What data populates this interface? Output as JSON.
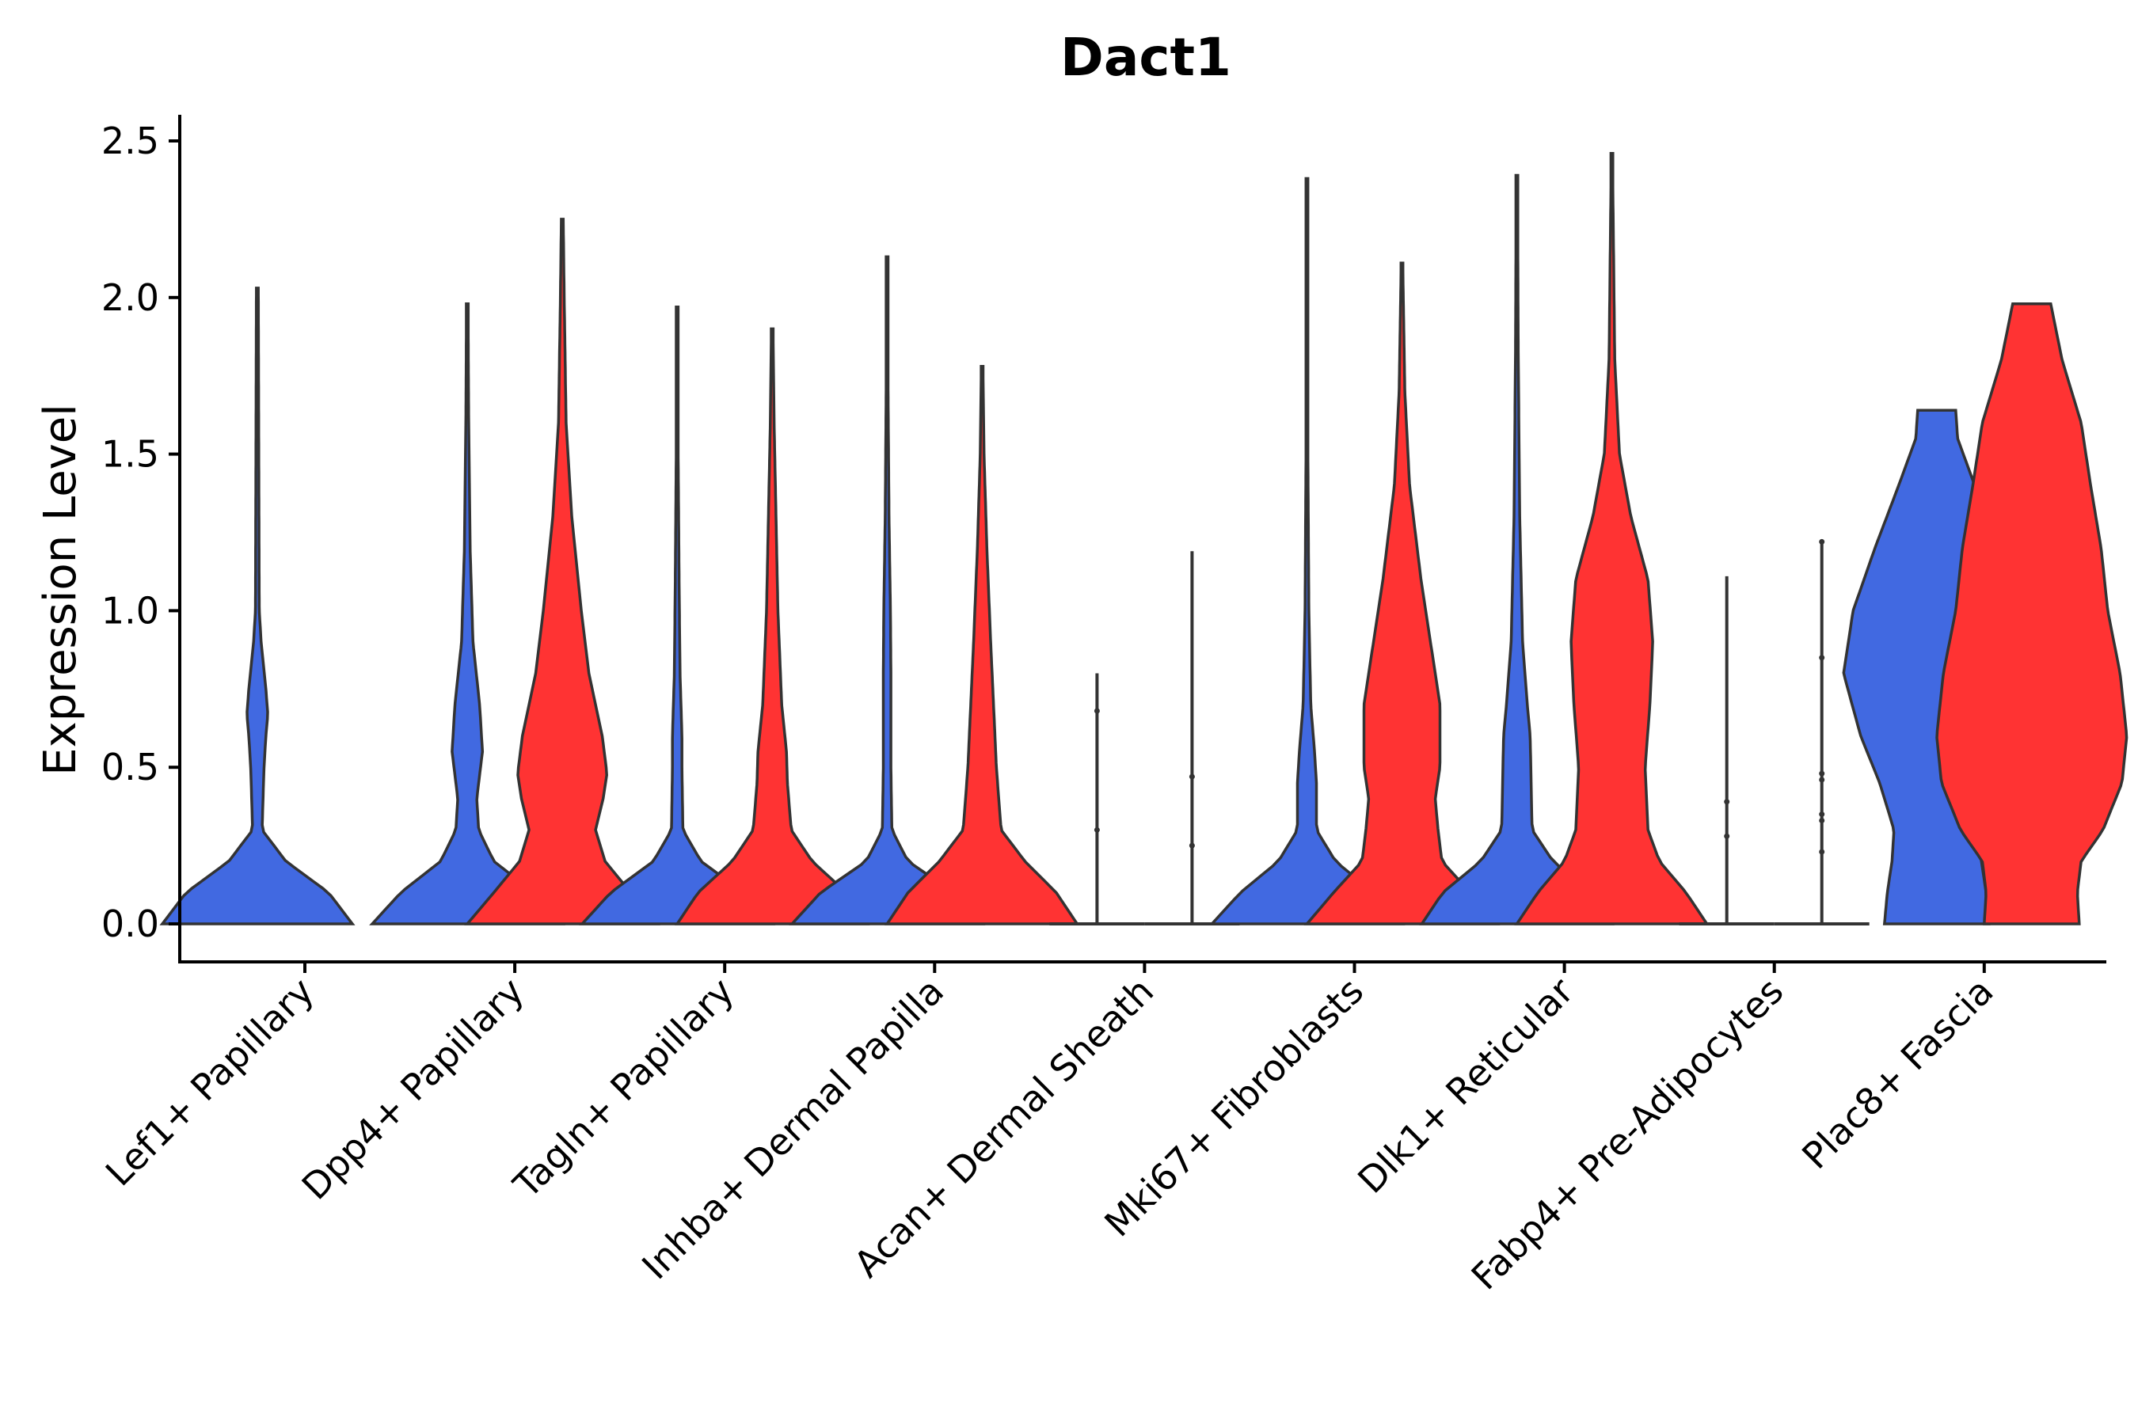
{
  "chart_data": {
    "type": "violin",
    "title": "Dact1",
    "xlabel": "",
    "ylabel": "Expression Level",
    "ylim": [
      -0.12,
      2.6
    ],
    "yticks": [
      "0.0",
      "0.5",
      "1.0",
      "1.5",
      "2.0",
      "2.5"
    ],
    "ytick_values": [
      0,
      0.5,
      1.0,
      1.5,
      2.0,
      2.5
    ],
    "colors": {
      "blue": "#4169E1",
      "red": "#FF3333",
      "outline": "#333333"
    },
    "categories": [
      "Lef1+ Papillary",
      "Dpp4+ Papillary",
      "Tagln+ Papillary",
      "Inhba+ Dermal Papilla",
      "Acan+ Dermal Sheath",
      "Mki67+ Fibroblasts",
      "Dlk1+ Reticular",
      "Fabp4+ Pre-Adipocytes",
      "Plac8+ Fascia"
    ],
    "series": [
      {
        "name": "blue",
        "color": "#4169E1",
        "max_values": [
          2.03,
          1.98,
          1.97,
          2.13,
          0.8,
          2.38,
          2.39,
          1.11,
          1.64
        ],
        "densities": [
          [
            [
              0,
              1.0
            ],
            [
              0.1,
              0.75
            ],
            [
              0.2,
              0.3
            ],
            [
              0.3,
              0.05
            ],
            [
              0.5,
              0.07
            ],
            [
              0.6,
              0.09
            ],
            [
              0.67,
              0.11
            ],
            [
              0.75,
              0.09
            ],
            [
              0.9,
              0.04
            ],
            [
              1.0,
              0.02
            ],
            [
              1.5,
              0.015
            ],
            [
              2.03,
              0.01
            ]
          ],
          [
            [
              0,
              1.0
            ],
            [
              0.1,
              0.7
            ],
            [
              0.2,
              0.28
            ],
            [
              0.3,
              0.12
            ],
            [
              0.4,
              0.1
            ],
            [
              0.55,
              0.16
            ],
            [
              0.7,
              0.13
            ],
            [
              0.9,
              0.06
            ],
            [
              1.2,
              0.03
            ],
            [
              1.6,
              0.015
            ],
            [
              1.98,
              0.008
            ]
          ],
          [
            [
              0,
              1.0
            ],
            [
              0.1,
              0.7
            ],
            [
              0.2,
              0.25
            ],
            [
              0.3,
              0.06
            ],
            [
              0.5,
              0.05
            ],
            [
              0.6,
              0.05
            ],
            [
              0.8,
              0.03
            ],
            [
              1.1,
              0.02
            ],
            [
              1.5,
              0.01
            ],
            [
              1.97,
              0.006
            ]
          ],
          [
            [
              0,
              1.0
            ],
            [
              0.1,
              0.7
            ],
            [
              0.2,
              0.22
            ],
            [
              0.3,
              0.05
            ],
            [
              0.5,
              0.04
            ],
            [
              0.8,
              0.04
            ],
            [
              1.0,
              0.035
            ],
            [
              1.3,
              0.02
            ],
            [
              1.7,
              0.01
            ],
            [
              2.13,
              0.006
            ]
          ],
          [
            [
              0,
              0.02
            ],
            [
              0.02,
              0.008
            ],
            [
              0.2,
              0.003
            ],
            [
              0.8,
              0.003
            ]
          ],
          [
            [
              0,
              1.0
            ],
            [
              0.1,
              0.7
            ],
            [
              0.2,
              0.3
            ],
            [
              0.3,
              0.1
            ],
            [
              0.45,
              0.1
            ],
            [
              0.55,
              0.08
            ],
            [
              0.7,
              0.04
            ],
            [
              1.0,
              0.02
            ],
            [
              1.5,
              0.01
            ],
            [
              2.38,
              0.006
            ]
          ],
          [
            [
              0,
              1.0
            ],
            [
              0.1,
              0.78
            ],
            [
              0.2,
              0.38
            ],
            [
              0.3,
              0.16
            ],
            [
              0.45,
              0.15
            ],
            [
              0.6,
              0.14
            ],
            [
              0.7,
              0.11
            ],
            [
              0.9,
              0.06
            ],
            [
              1.3,
              0.03
            ],
            [
              1.8,
              0.015
            ],
            [
              2.39,
              0.006
            ]
          ],
          [
            [
              0,
              0.02
            ],
            [
              0.02,
              0.008
            ],
            [
              0.2,
              0.003
            ],
            [
              1.11,
              0.003
            ]
          ],
          [
            [
              0,
              0.55
            ],
            [
              0.1,
              0.52
            ],
            [
              0.2,
              0.47
            ],
            [
              0.3,
              0.45
            ],
            [
              0.45,
              0.6
            ],
            [
              0.6,
              0.8
            ],
            [
              0.8,
              0.98
            ],
            [
              1.0,
              0.88
            ],
            [
              1.2,
              0.65
            ],
            [
              1.4,
              0.4
            ],
            [
              1.55,
              0.22
            ],
            [
              1.64,
              0.2
            ]
          ]
        ]
      },
      {
        "name": "red",
        "color": "#FF3333",
        "max_values": [
          null,
          2.25,
          1.9,
          1.78,
          1.19,
          2.11,
          2.46,
          1.22,
          1.98
        ],
        "densities": [
          null,
          [
            [
              0,
              1.0
            ],
            [
              0.1,
              0.72
            ],
            [
              0.2,
              0.45
            ],
            [
              0.3,
              0.35
            ],
            [
              0.4,
              0.43
            ],
            [
              0.48,
              0.47
            ],
            [
              0.6,
              0.42
            ],
            [
              0.8,
              0.28
            ],
            [
              1.0,
              0.2
            ],
            [
              1.3,
              0.1
            ],
            [
              1.6,
              0.04
            ],
            [
              2.0,
              0.02
            ],
            [
              2.25,
              0.01
            ]
          ],
          [
            [
              0,
              1.0
            ],
            [
              0.1,
              0.78
            ],
            [
              0.2,
              0.42
            ],
            [
              0.3,
              0.2
            ],
            [
              0.45,
              0.16
            ],
            [
              0.55,
              0.15
            ],
            [
              0.7,
              0.1
            ],
            [
              1.0,
              0.06
            ],
            [
              1.3,
              0.04
            ],
            [
              1.6,
              0.02
            ],
            [
              1.9,
              0.008
            ]
          ],
          [
            [
              0,
              1.0
            ],
            [
              0.1,
              0.78
            ],
            [
              0.2,
              0.45
            ],
            [
              0.3,
              0.2
            ],
            [
              0.5,
              0.15
            ],
            [
              0.7,
              0.12
            ],
            [
              0.9,
              0.09
            ],
            [
              1.2,
              0.05
            ],
            [
              1.5,
              0.02
            ],
            [
              1.78,
              0.008
            ]
          ],
          [
            [
              0,
              0.02
            ],
            [
              0.02,
              0.008
            ],
            [
              0.2,
              0.003
            ],
            [
              1.19,
              0.003
            ]
          ],
          [
            [
              0,
              1.0
            ],
            [
              0.1,
              0.72
            ],
            [
              0.2,
              0.42
            ],
            [
              0.3,
              0.38
            ],
            [
              0.4,
              0.35
            ],
            [
              0.5,
              0.4
            ],
            [
              0.7,
              0.4
            ],
            [
              0.9,
              0.3
            ],
            [
              1.1,
              0.2
            ],
            [
              1.4,
              0.08
            ],
            [
              1.7,
              0.03
            ],
            [
              2.11,
              0.008
            ]
          ],
          [
            [
              0,
              1.0
            ],
            [
              0.1,
              0.78
            ],
            [
              0.2,
              0.5
            ],
            [
              0.3,
              0.38
            ],
            [
              0.5,
              0.35
            ],
            [
              0.7,
              0.4
            ],
            [
              0.9,
              0.43
            ],
            [
              1.1,
              0.38
            ],
            [
              1.3,
              0.2
            ],
            [
              1.5,
              0.08
            ],
            [
              1.8,
              0.03
            ],
            [
              2.46,
              0.006
            ]
          ],
          [
            [
              0,
              0.02
            ],
            [
              0.02,
              0.008
            ],
            [
              0.2,
              0.003
            ],
            [
              1.22,
              0.003
            ]
          ],
          [
            [
              0,
              0.5
            ],
            [
              0.1,
              0.48
            ],
            [
              0.2,
              0.52
            ],
            [
              0.3,
              0.75
            ],
            [
              0.45,
              0.95
            ],
            [
              0.6,
              1.0
            ],
            [
              0.8,
              0.93
            ],
            [
              1.0,
              0.8
            ],
            [
              1.2,
              0.73
            ],
            [
              1.4,
              0.62
            ],
            [
              1.6,
              0.52
            ],
            [
              1.8,
              0.32
            ],
            [
              1.98,
              0.2
            ]
          ]
        ]
      }
    ],
    "points": [
      {
        "category": "Acan+ Dermal Sheath",
        "series": "blue",
        "values": [
          0.3,
          0.68
        ]
      },
      {
        "category": "Acan+ Dermal Sheath",
        "series": "red",
        "values": [
          0.25,
          0.47
        ]
      },
      {
        "category": "Fabp4+ Pre-Adipocytes",
        "series": "blue",
        "values": [
          0.28,
          0.39
        ]
      },
      {
        "category": "Fabp4+ Pre-Adipocytes",
        "series": "red",
        "values": [
          0.23,
          0.33,
          0.35,
          0.46,
          0.48,
          0.85,
          1.22
        ]
      }
    ]
  }
}
